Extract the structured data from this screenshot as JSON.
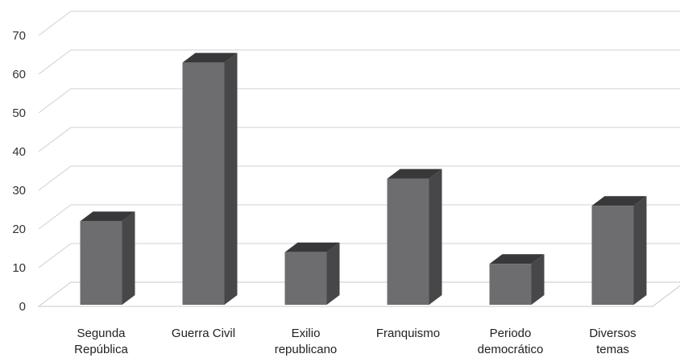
{
  "chart_data": {
    "type": "bar",
    "style": "3d-column",
    "categories": [
      [
        "Segunda",
        "República"
      ],
      [
        "Guerra Civil"
      ],
      [
        "Exilio",
        "republicano"
      ],
      [
        "Franquismo"
      ],
      [
        "Periodo",
        "democrático"
      ],
      [
        "Diversos",
        "temas"
      ]
    ],
    "values": [
      22,
      63,
      14,
      33,
      11,
      26
    ],
    "ylim": [
      0,
      70
    ],
    "yticks": [
      "0",
      "10",
      "20",
      "30",
      "40",
      "50",
      "60",
      "70"
    ],
    "grid": true,
    "legend": "none",
    "title": "",
    "xlabel": "",
    "ylabel": "",
    "colors": {
      "bar_front": "#6d6d6f",
      "bar_side": "#47474a",
      "bar_top": "#38383b",
      "grid": "#d9d9d9",
      "floor": "#c8c8c8"
    }
  }
}
